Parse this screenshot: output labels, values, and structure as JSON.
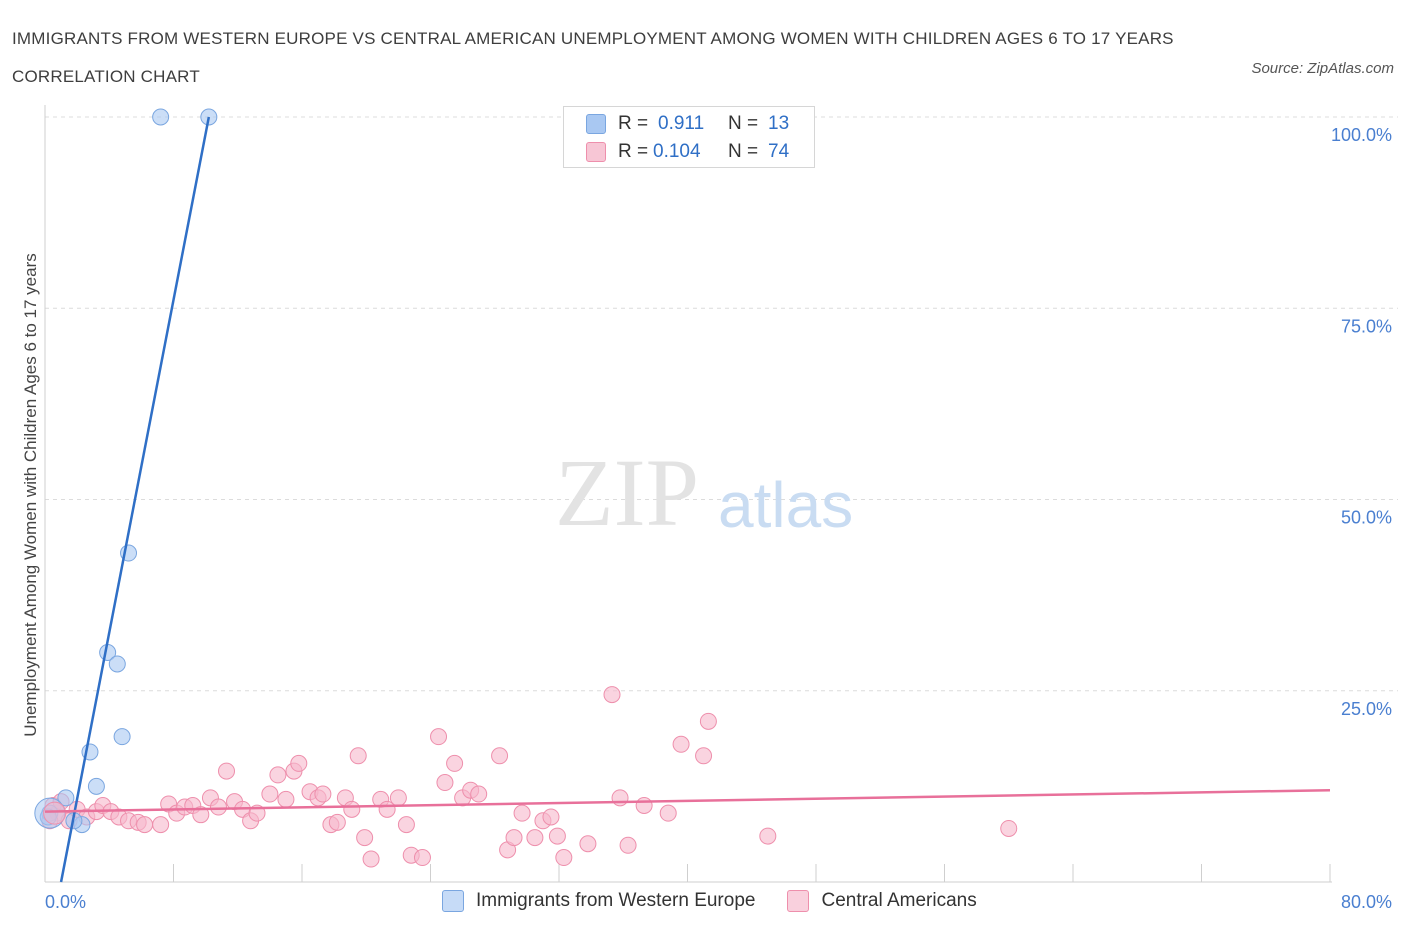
{
  "title": "IMMIGRANTS FROM WESTERN EUROPE VS CENTRAL AMERICAN UNEMPLOYMENT AMONG WOMEN WITH CHILDREN AGES 6 TO 17 YEARS CORRELATION CHART",
  "source": "Source: ZipAtlas.com",
  "watermark": {
    "zip": "ZIP",
    "atlas": "atlas"
  },
  "legend": {
    "rows": [
      {
        "r_label": "R =",
        "r_value": "0.911",
        "n_label": "N =",
        "n_value": "13",
        "color": "#a9c8f2"
      },
      {
        "r_label": "R =",
        "r_value": "0.104",
        "n_label": "N =",
        "n_value": "74",
        "color": "#f7b8cb"
      }
    ]
  },
  "chart_data": {
    "type": "scatter",
    "title": "IMMIGRANTS FROM WESTERN EUROPE VS CENTRAL AMERICAN UNEMPLOYMENT AMONG WOMEN WITH CHILDREN AGES 6 TO 17 YEARS CORRELATION CHART",
    "xlabel": "",
    "ylabel": "Unemployment Among Women with Children Ages 6 to 17 years",
    "xlim": [
      0,
      80
    ],
    "ylim": [
      0,
      100
    ],
    "x_ticks": [
      "0.0%",
      "80.0%"
    ],
    "y_ticks": [
      "25.0%",
      "50.0%",
      "75.0%",
      "100.0%"
    ],
    "grid": true,
    "series": [
      {
        "name": "Immigrants from Western Europe",
        "color": "#a9c8f2",
        "stroke": "#7aa6e0",
        "trend_color": "#2f6fc6",
        "trend": [
          [
            1.0,
            0.0
          ],
          [
            10.2,
            100.0
          ]
        ],
        "points": [
          [
            7.2,
            100.0
          ],
          [
            10.2,
            100.0
          ],
          [
            5.2,
            43.0
          ],
          [
            3.9,
            30.0
          ],
          [
            4.5,
            28.5
          ],
          [
            4.8,
            19.0
          ],
          [
            2.8,
            17.0
          ],
          [
            3.2,
            12.5
          ],
          [
            1.3,
            11.0
          ],
          [
            0.3,
            9.0
          ],
          [
            2.3,
            7.5
          ],
          [
            1.8,
            8.0
          ],
          [
            0.2,
            8.5
          ]
        ]
      },
      {
        "name": "Central Americans",
        "color": "#f7b8cb",
        "stroke": "#ee8fac",
        "trend_color": "#e8709a",
        "trend": [
          [
            0.0,
            9.2
          ],
          [
            80.0,
            12.0
          ]
        ],
        "points": [
          [
            0.8,
            9.0
          ],
          [
            1.5,
            8.0
          ],
          [
            2.0,
            9.5
          ],
          [
            2.6,
            8.5
          ],
          [
            3.2,
            9.2
          ],
          [
            3.6,
            10.0
          ],
          [
            4.1,
            9.2
          ],
          [
            4.6,
            8.5
          ],
          [
            5.2,
            8.0
          ],
          [
            5.8,
            7.8
          ],
          [
            6.2,
            7.5
          ],
          [
            7.2,
            7.5
          ],
          [
            7.7,
            10.2
          ],
          [
            8.2,
            9.0
          ],
          [
            8.7,
            9.8
          ],
          [
            9.2,
            10.0
          ],
          [
            9.7,
            8.8
          ],
          [
            10.3,
            11.0
          ],
          [
            10.8,
            9.8
          ],
          [
            11.3,
            14.5
          ],
          [
            11.8,
            10.5
          ],
          [
            12.3,
            9.5
          ],
          [
            12.8,
            8.0
          ],
          [
            13.2,
            9.0
          ],
          [
            14.0,
            11.5
          ],
          [
            14.5,
            14.0
          ],
          [
            15.0,
            10.8
          ],
          [
            15.5,
            14.5
          ],
          [
            15.8,
            15.5
          ],
          [
            16.5,
            11.8
          ],
          [
            17.0,
            11.0
          ],
          [
            17.3,
            11.5
          ],
          [
            17.8,
            7.5
          ],
          [
            18.2,
            7.8
          ],
          [
            18.7,
            11.0
          ],
          [
            19.1,
            9.5
          ],
          [
            19.5,
            16.5
          ],
          [
            19.9,
            5.8
          ],
          [
            20.3,
            3.0
          ],
          [
            20.9,
            10.8
          ],
          [
            21.3,
            9.5
          ],
          [
            22.0,
            11.0
          ],
          [
            22.5,
            7.5
          ],
          [
            22.8,
            3.5
          ],
          [
            23.5,
            3.2
          ],
          [
            24.5,
            19.0
          ],
          [
            24.9,
            13.0
          ],
          [
            25.5,
            15.5
          ],
          [
            26.0,
            11.0
          ],
          [
            26.5,
            12.0
          ],
          [
            27.0,
            11.5
          ],
          [
            28.3,
            16.5
          ],
          [
            28.8,
            4.2
          ],
          [
            29.2,
            5.8
          ],
          [
            29.7,
            9.0
          ],
          [
            30.5,
            5.8
          ],
          [
            31.0,
            8.0
          ],
          [
            31.5,
            8.5
          ],
          [
            31.9,
            6.0
          ],
          [
            32.3,
            3.2
          ],
          [
            33.8,
            5.0
          ],
          [
            35.3,
            24.5
          ],
          [
            35.8,
            11.0
          ],
          [
            36.3,
            4.8
          ],
          [
            37.3,
            10.0
          ],
          [
            38.8,
            9.0
          ],
          [
            39.6,
            18.0
          ],
          [
            41.0,
            16.5
          ],
          [
            41.3,
            21.0
          ],
          [
            45.0,
            6.0
          ],
          [
            60.0,
            7.0
          ],
          [
            0.5,
            10.0
          ],
          [
            1.0,
            10.5
          ],
          [
            0.3,
            8.0
          ]
        ]
      }
    ]
  }
}
